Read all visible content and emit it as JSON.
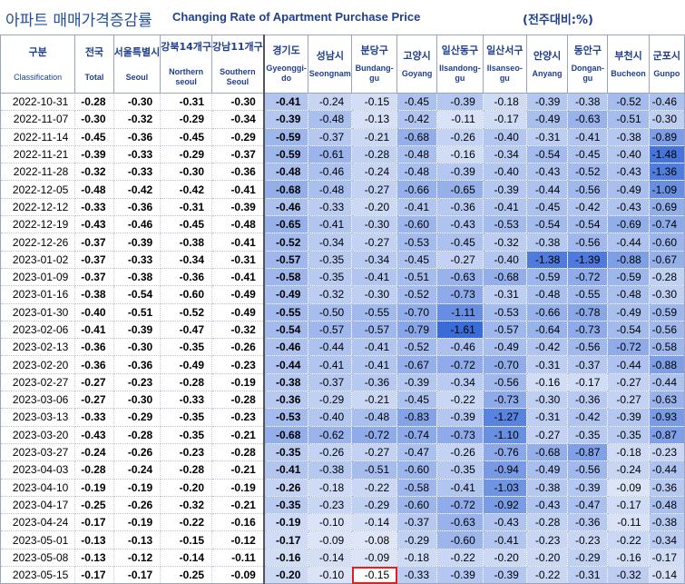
{
  "title": {
    "korean": "아파트 매매가격증감률",
    "english": "Changing Rate of Apartment Purchase Price",
    "unit": "(전주대비:%)"
  },
  "columns": [
    {
      "ko": "구분",
      "en": "Classification"
    },
    {
      "ko": "전국",
      "en": "Total"
    },
    {
      "ko": "서울특별시",
      "en": "Seoul"
    },
    {
      "ko": "강북14개구",
      "en": "Northern seoul"
    },
    {
      "ko": "강남11개구",
      "en": "Southern Seoul"
    },
    {
      "ko": "경기도",
      "en": "Gyeonggi-do"
    },
    {
      "ko": "성남시",
      "en": "Seongnam"
    },
    {
      "ko": "분당구",
      "en": "Bundang-gu"
    },
    {
      "ko": "고양시",
      "en": "Goyang"
    },
    {
      "ko": "일산동구",
      "en": "Ilsandong-gu"
    },
    {
      "ko": "일산서구",
      "en": "Ilsanseo-gu"
    },
    {
      "ko": "안양시",
      "en": "Anyang"
    },
    {
      "ko": "동안구",
      "en": "Dongan-gu"
    },
    {
      "ko": "부천시",
      "en": "Bucheon"
    },
    {
      "ko": "군포시",
      "en": "Gunpo"
    }
  ],
  "rows": [
    {
      "date": "2022-10-31",
      "v": [
        "-0.28",
        "-0.30",
        "-0.31",
        "-0.30",
        "-0.41",
        "-0.24",
        "-0.15",
        "-0.45",
        "-0.39",
        "-0.18",
        "-0.39",
        "-0.38",
        "-0.52",
        "-0.46"
      ]
    },
    {
      "date": "2022-11-07",
      "v": [
        "-0.30",
        "-0.32",
        "-0.29",
        "-0.34",
        "-0.39",
        "-0.48",
        "-0.13",
        "-0.42",
        "-0.11",
        "-0.17",
        "-0.49",
        "-0.63",
        "-0.51",
        "-0.30"
      ]
    },
    {
      "date": "2022-11-14",
      "v": [
        "-0.45",
        "-0.36",
        "-0.45",
        "-0.29",
        "-0.59",
        "-0.37",
        "-0.21",
        "-0.68",
        "-0.26",
        "-0.40",
        "-0.31",
        "-0.41",
        "-0.38",
        "-0.89"
      ]
    },
    {
      "date": "2022-11-21",
      "v": [
        "-0.39",
        "-0.33",
        "-0.29",
        "-0.37",
        "-0.59",
        "-0.61",
        "-0.28",
        "-0.48",
        "-0.16",
        "-0.34",
        "-0.54",
        "-0.45",
        "-0.40",
        "-1.48"
      ]
    },
    {
      "date": "2022-11-28",
      "v": [
        "-0.32",
        "-0.33",
        "-0.30",
        "-0.36",
        "-0.48",
        "-0.46",
        "-0.24",
        "-0.48",
        "-0.39",
        "-0.40",
        "-0.43",
        "-0.52",
        "-0.43",
        "-1.36"
      ]
    },
    {
      "date": "2022-12-05",
      "v": [
        "-0.48",
        "-0.42",
        "-0.42",
        "-0.41",
        "-0.68",
        "-0.48",
        "-0.27",
        "-0.66",
        "-0.65",
        "-0.39",
        "-0.44",
        "-0.56",
        "-0.49",
        "-1.09"
      ]
    },
    {
      "date": "2022-12-12",
      "v": [
        "-0.33",
        "-0.36",
        "-0.31",
        "-0.39",
        "-0.46",
        "-0.33",
        "-0.20",
        "-0.41",
        "-0.36",
        "-0.41",
        "-0.45",
        "-0.42",
        "-0.43",
        "-0.69"
      ]
    },
    {
      "date": "2022-12-19",
      "v": [
        "-0.43",
        "-0.46",
        "-0.45",
        "-0.48",
        "-0.65",
        "-0.41",
        "-0.30",
        "-0.60",
        "-0.43",
        "-0.53",
        "-0.54",
        "-0.54",
        "-0.69",
        "-0.74"
      ]
    },
    {
      "date": "2022-12-26",
      "v": [
        "-0.37",
        "-0.39",
        "-0.38",
        "-0.41",
        "-0.52",
        "-0.34",
        "-0.27",
        "-0.53",
        "-0.45",
        "-0.32",
        "-0.38",
        "-0.56",
        "-0.44",
        "-0.60"
      ]
    },
    {
      "date": "2023-01-02",
      "v": [
        "-0.37",
        "-0.33",
        "-0.34",
        "-0.31",
        "-0.57",
        "-0.35",
        "-0.34",
        "-0.45",
        "-0.27",
        "-0.40",
        "-1.38",
        "-1.39",
        "-0.88",
        "-0.67"
      ]
    },
    {
      "date": "2023-01-09",
      "v": [
        "-0.37",
        "-0.38",
        "-0.36",
        "-0.41",
        "-0.58",
        "-0.35",
        "-0.41",
        "-0.51",
        "-0.63",
        "-0.68",
        "-0.59",
        "-0.72",
        "-0.59",
        "-0.28"
      ]
    },
    {
      "date": "2023-01-16",
      "v": [
        "-0.38",
        "-0.54",
        "-0.60",
        "-0.49",
        "-0.49",
        "-0.32",
        "-0.30",
        "-0.52",
        "-0.73",
        "-0.31",
        "-0.48",
        "-0.55",
        "-0.48",
        "-0.30"
      ]
    },
    {
      "date": "2023-01-30",
      "v": [
        "-0.40",
        "-0.51",
        "-0.52",
        "-0.49",
        "-0.55",
        "-0.50",
        "-0.55",
        "-0.70",
        "-1.11",
        "-0.53",
        "-0.66",
        "-0.78",
        "-0.49",
        "-0.59"
      ]
    },
    {
      "date": "2023-02-06",
      "v": [
        "-0.41",
        "-0.39",
        "-0.47",
        "-0.32",
        "-0.54",
        "-0.57",
        "-0.57",
        "-0.79",
        "-1.61",
        "-0.57",
        "-0.64",
        "-0.73",
        "-0.54",
        "-0.56"
      ]
    },
    {
      "date": "2023-02-13",
      "v": [
        "-0.36",
        "-0.30",
        "-0.35",
        "-0.26",
        "-0.46",
        "-0.44",
        "-0.41",
        "-0.52",
        "-0.46",
        "-0.49",
        "-0.42",
        "-0.56",
        "-0.72",
        "-0.58"
      ]
    },
    {
      "date": "2023-02-20",
      "v": [
        "-0.36",
        "-0.36",
        "-0.49",
        "-0.23",
        "-0.44",
        "-0.41",
        "-0.41",
        "-0.67",
        "-0.72",
        "-0.70",
        "-0.31",
        "-0.37",
        "-0.44",
        "-0.88"
      ]
    },
    {
      "date": "2023-02-27",
      "v": [
        "-0.27",
        "-0.23",
        "-0.28",
        "-0.19",
        "-0.38",
        "-0.37",
        "-0.36",
        "-0.39",
        "-0.34",
        "-0.56",
        "-0.16",
        "-0.17",
        "-0.27",
        "-0.44"
      ]
    },
    {
      "date": "2023-03-06",
      "v": [
        "-0.27",
        "-0.30",
        "-0.33",
        "-0.28",
        "-0.36",
        "-0.29",
        "-0.21",
        "-0.45",
        "-0.22",
        "-0.73",
        "-0.30",
        "-0.36",
        "-0.27",
        "-0.63"
      ]
    },
    {
      "date": "2023-03-13",
      "v": [
        "-0.33",
        "-0.29",
        "-0.35",
        "-0.23",
        "-0.53",
        "-0.40",
        "-0.48",
        "-0.83",
        "-0.39",
        "-1.27",
        "-0.31",
        "-0.42",
        "-0.39",
        "-0.93"
      ]
    },
    {
      "date": "2023-03-20",
      "v": [
        "-0.43",
        "-0.28",
        "-0.35",
        "-0.21",
        "-0.68",
        "-0.62",
        "-0.72",
        "-0.74",
        "-0.73",
        "-1.10",
        "-0.27",
        "-0.35",
        "-0.35",
        "-0.87"
      ]
    },
    {
      "date": "2023-03-27",
      "v": [
        "-0.24",
        "-0.26",
        "-0.23",
        "-0.28",
        "-0.35",
        "-0.26",
        "-0.27",
        "-0.47",
        "-0.26",
        "-0.76",
        "-0.68",
        "-0.87",
        "-0.18",
        "-0.23"
      ]
    },
    {
      "date": "2023-04-03",
      "v": [
        "-0.28",
        "-0.24",
        "-0.28",
        "-0.21",
        "-0.41",
        "-0.38",
        "-0.51",
        "-0.60",
        "-0.35",
        "-0.94",
        "-0.49",
        "-0.56",
        "-0.24",
        "-0.44"
      ]
    },
    {
      "date": "2023-04-10",
      "v": [
        "-0.19",
        "-0.19",
        "-0.20",
        "-0.19",
        "-0.26",
        "-0.18",
        "-0.22",
        "-0.58",
        "-0.41",
        "-1.03",
        "-0.38",
        "-0.39",
        "-0.09",
        "-0.36"
      ]
    },
    {
      "date": "2023-04-17",
      "v": [
        "-0.25",
        "-0.26",
        "-0.32",
        "-0.21",
        "-0.35",
        "-0.23",
        "-0.29",
        "-0.60",
        "-0.72",
        "-0.92",
        "-0.43",
        "-0.47",
        "-0.17",
        "-0.48"
      ]
    },
    {
      "date": "2023-04-24",
      "v": [
        "-0.17",
        "-0.19",
        "-0.22",
        "-0.16",
        "-0.19",
        "-0.10",
        "-0.14",
        "-0.37",
        "-0.63",
        "-0.43",
        "-0.28",
        "-0.36",
        "-0.11",
        "-0.38"
      ]
    },
    {
      "date": "2023-05-01",
      "v": [
        "-0.13",
        "-0.13",
        "-0.15",
        "-0.12",
        "-0.17",
        "-0.09",
        "-0.08",
        "-0.29",
        "-0.60",
        "-0.41",
        "-0.23",
        "-0.23",
        "-0.22",
        "-0.34"
      ]
    },
    {
      "date": "2023-05-08",
      "v": [
        "-0.13",
        "-0.12",
        "-0.14",
        "-0.11",
        "-0.16",
        "-0.14",
        "-0.09",
        "-0.18",
        "-0.22",
        "-0.20",
        "-0.20",
        "-0.29",
        "-0.16",
        "-0.17"
      ]
    },
    {
      "date": "2023-05-15",
      "v": [
        "-0.17",
        "-0.17",
        "-0.25",
        "-0.09",
        "-0.20",
        "-0.10",
        "-0.15",
        "-0.33",
        "-0.39",
        "-0.39",
        "-0.22",
        "-0.31",
        "-0.32",
        "-0.14"
      ]
    }
  ],
  "highlight": {
    "row": "2023-05-15",
    "col": "Bundang-gu"
  },
  "colors": {
    "title": "#1f4e9a",
    "header_text": "#1f3f8f",
    "highlight_border": "#e32020",
    "cell_light": "#eef2fb",
    "cell_dark": "#3a6cd8"
  }
}
